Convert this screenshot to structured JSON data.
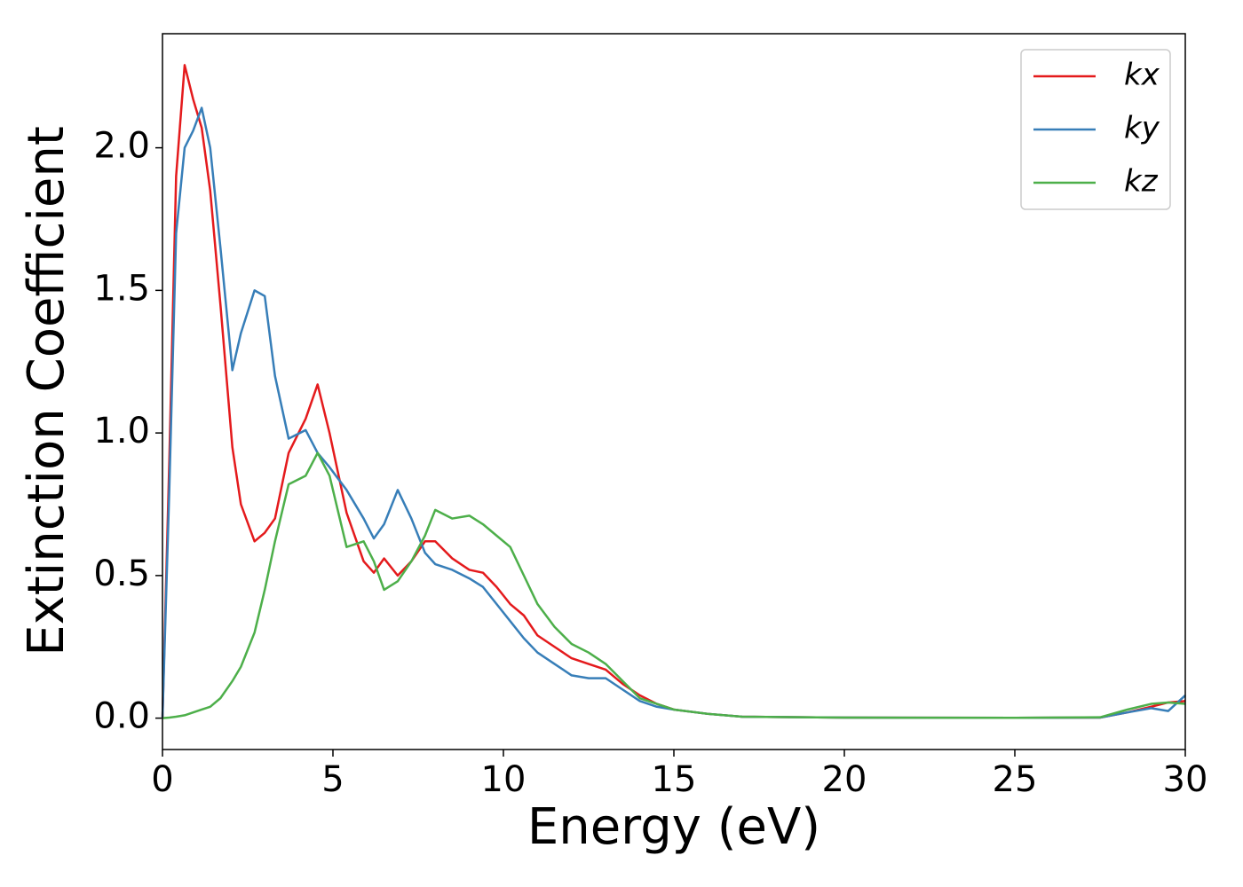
{
  "chart_data": {
    "type": "line",
    "xlabel": "Energy (eV)",
    "ylabel": "Extinction Coefficient",
    "x": [
      0,
      0.2,
      0.4,
      0.65,
      0.9,
      1.15,
      1.4,
      1.7,
      2.05,
      2.3,
      2.7,
      3.0,
      3.3,
      3.7,
      4.2,
      4.55,
      4.9,
      5.4,
      5.9,
      6.2,
      6.5,
      6.9,
      7.3,
      7.7,
      8.0,
      8.5,
      9.0,
      9.4,
      9.8,
      10.2,
      10.6,
      11,
      11.5,
      12,
      12.5,
      13,
      13.5,
      14,
      14.5,
      15,
      16,
      17,
      20,
      25,
      27.5,
      28.3,
      29,
      29.5,
      30
    ],
    "series": [
      {
        "name": "kx",
        "color": "#e41a1c",
        "values": [
          0,
          0.9,
          1.9,
          2.29,
          2.17,
          2.07,
          1.85,
          1.45,
          0.95,
          0.75,
          0.62,
          0.65,
          0.7,
          0.93,
          1.05,
          1.17,
          1.0,
          0.72,
          0.55,
          0.51,
          0.56,
          0.5,
          0.55,
          0.62,
          0.62,
          0.56,
          0.52,
          0.51,
          0.46,
          0.4,
          0.36,
          0.29,
          0.25,
          0.21,
          0.19,
          0.17,
          0.12,
          0.08,
          0.05,
          0.03,
          0.015,
          0.005,
          0.002,
          0.001,
          0.002,
          0.02,
          0.04,
          0.055,
          0.06
        ]
      },
      {
        "name": "ky",
        "color": "#377eb8",
        "values": [
          0,
          0.8,
          1.7,
          2.0,
          2.06,
          2.14,
          2.0,
          1.65,
          1.22,
          1.35,
          1.5,
          1.48,
          1.2,
          0.98,
          1.01,
          0.93,
          0.88,
          0.8,
          0.7,
          0.63,
          0.68,
          0.8,
          0.7,
          0.58,
          0.54,
          0.52,
          0.49,
          0.46,
          0.4,
          0.34,
          0.28,
          0.23,
          0.19,
          0.15,
          0.14,
          0.14,
          0.1,
          0.06,
          0.04,
          0.03,
          0.015,
          0.005,
          0.002,
          0.001,
          0.002,
          0.02,
          0.035,
          0.025,
          0.08
        ]
      },
      {
        "name": "kz",
        "color": "#4daf4a",
        "values": [
          0,
          0.002,
          0.005,
          0.01,
          0.02,
          0.03,
          0.04,
          0.07,
          0.13,
          0.18,
          0.3,
          0.45,
          0.62,
          0.82,
          0.85,
          0.93,
          0.85,
          0.6,
          0.62,
          0.55,
          0.45,
          0.48,
          0.55,
          0.64,
          0.73,
          0.7,
          0.71,
          0.68,
          0.64,
          0.6,
          0.5,
          0.4,
          0.32,
          0.26,
          0.23,
          0.19,
          0.13,
          0.07,
          0.05,
          0.03,
          0.015,
          0.005,
          0.002,
          0.001,
          0.003,
          0.03,
          0.05,
          0.055,
          0.05
        ]
      }
    ],
    "xlim": [
      0,
      30
    ],
    "xticks": [
      0,
      5,
      10,
      15,
      20,
      25,
      30
    ],
    "ylim": [
      -0.11,
      2.4
    ],
    "yticks": [
      {
        "value": 0,
        "label": "0.0"
      },
      0.5,
      {
        "value": 1,
        "label": "1.0"
      },
      1.5,
      {
        "value": 2,
        "label": "2.0"
      }
    ],
    "legend": "upper right",
    "grid": false
  }
}
